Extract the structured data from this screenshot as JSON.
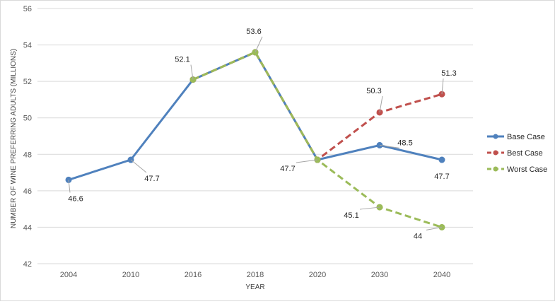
{
  "chart_data": {
    "type": "line",
    "title": "",
    "xlabel": "YEAR",
    "ylabel": "NUMBER OF WINE PREFERRING ADULTS (MILLIONS)",
    "categories": [
      "2004",
      "2010",
      "2016",
      "2018",
      "2020",
      "2030",
      "2040"
    ],
    "ylim": [
      42,
      56
    ],
    "yticks": [
      "42",
      "44",
      "46",
      "48",
      "50",
      "52",
      "54",
      "56"
    ],
    "grid": true,
    "legend": "right",
    "series": [
      {
        "name": "Base Case",
        "color": "#4f81bd",
        "dash": "solid",
        "values": [
          46.6,
          47.7,
          52.1,
          53.6,
          47.7,
          48.5,
          47.7
        ],
        "labels": [
          "46.6",
          "47.7",
          "",
          "",
          "",
          "48.5",
          "47.7"
        ]
      },
      {
        "name": "Best Case",
        "color": "#c0504d",
        "dash": "dashed",
        "values": [
          null,
          null,
          52.1,
          53.6,
          47.7,
          50.3,
          51.3
        ],
        "labels": [
          "",
          "",
          "",
          "",
          "",
          "50.3",
          "51.3"
        ]
      },
      {
        "name": "Worst Case",
        "color": "#9bbb59",
        "dash": "dashed",
        "values": [
          null,
          null,
          52.1,
          53.6,
          47.7,
          45.1,
          44
        ],
        "labels": [
          "",
          "",
          "52.1",
          "53.6",
          "47.7",
          "45.1",
          "44"
        ]
      }
    ]
  }
}
